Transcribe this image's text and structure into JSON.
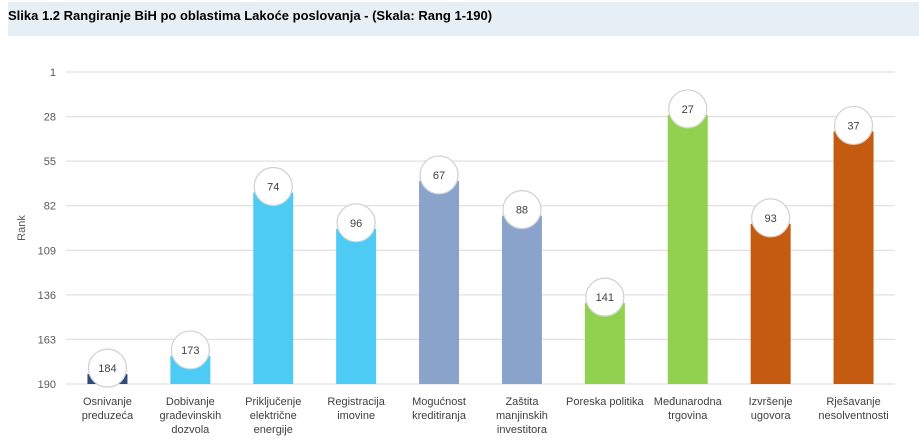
{
  "caption": "Slika 1.2 Rangiranje BiH po oblastima Lakoće poslovanja -  (Skala: Rang 1-190)",
  "chart_data": {
    "type": "bar",
    "title": "Slika 1.2 Rangiranje BiH po oblastima Lakoće poslovanja -  (Skala: Rang 1-190)",
    "ylabel": "Rank",
    "xlabel": "",
    "ylim": [
      1,
      190
    ],
    "y_inverted": true,
    "yticks": [
      1,
      28,
      55,
      82,
      109,
      136,
      163,
      190
    ],
    "categories": [
      [
        "Osnivanje",
        "preduzeća"
      ],
      [
        "Dobivanje",
        "građevinskih",
        "dozvola"
      ],
      [
        "Priključenje",
        "električne",
        "energije"
      ],
      [
        "Registracija",
        "imovine"
      ],
      [
        "Mogućnost",
        "kreditiranja"
      ],
      [
        "Zaštita",
        "manjinskih",
        "investitora"
      ],
      [
        "Poreska politika"
      ],
      [
        "Međunarodna",
        "trgovina"
      ],
      [
        "Izvršenje",
        "ugovora"
      ],
      [
        "Rješavanje",
        "nesolventnosti"
      ]
    ],
    "values": [
      184,
      173,
      74,
      96,
      67,
      88,
      141,
      27,
      93,
      37
    ],
    "colors": [
      "#2e4a7e",
      "#4dcbf5",
      "#4dcbf5",
      "#4dcbf5",
      "#8aa3cb",
      "#8aa3cb",
      "#92d050",
      "#92d050",
      "#c55a11",
      "#c55a11"
    ]
  }
}
